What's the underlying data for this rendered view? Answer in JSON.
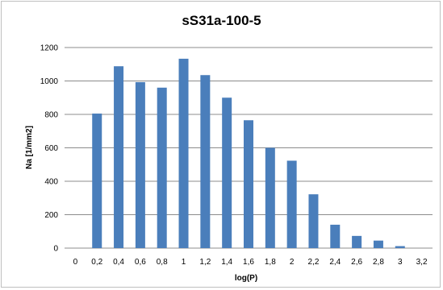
{
  "chart_data": {
    "type": "bar",
    "title": "sS31a-100-5",
    "xlabel": "log(P)",
    "ylabel": "Na [1/mm2]",
    "categories": [
      "0",
      "0,2",
      "0,4",
      "0,6",
      "0,8",
      "1",
      "1,2",
      "1,4",
      "1,6",
      "1,8",
      "2",
      "2,2",
      "2,4",
      "2,6",
      "2,8",
      "3",
      "3,2"
    ],
    "values": [
      0,
      805,
      1088,
      993,
      960,
      1133,
      1035,
      900,
      765,
      600,
      523,
      322,
      140,
      73,
      45,
      12,
      0
    ],
    "ylim": [
      0,
      1200
    ],
    "yticks": [
      0,
      200,
      400,
      600,
      800,
      1000,
      1200
    ],
    "grid": true,
    "legend": "none",
    "colors": {
      "bar": "#4a7ebb",
      "grid": "#8c8c8c",
      "axis": "#8c8c8c"
    }
  }
}
